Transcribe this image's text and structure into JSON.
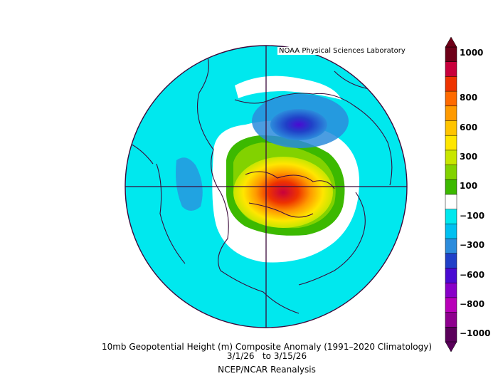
{
  "credit": "NOAA Physical Sciences Laboratory",
  "caption": {
    "line1": "10mb Geopotential Height (m) Composite Anomaly (1991–2020 Climatology)",
    "line2": "3/1/26   to 3/15/26",
    "line3": "NCEP/NCAR Reanalysis"
  },
  "colorbar": {
    "labels": [
      "1000",
      "800",
      "600",
      "300",
      "100",
      "−100",
      "−300",
      "−600",
      "−800",
      "−1000"
    ],
    "colors": [
      "#6e0018",
      "#c8003c",
      "#ee3300",
      "#ff6a00",
      "#ff9a00",
      "#ffc400",
      "#ffe600",
      "#c8e600",
      "#82d200",
      "#3cb900",
      "#ffffff",
      "#00e8ee",
      "#00c0f0",
      "#2c8cdc",
      "#2040c8",
      "#4a0ad2",
      "#8800c8",
      "#b800b8",
      "#8e008e",
      "#5a005a"
    ]
  },
  "map": {
    "ocean_anomaly_color": "#00e8ee",
    "outline_color": "#3b0a3b"
  }
}
